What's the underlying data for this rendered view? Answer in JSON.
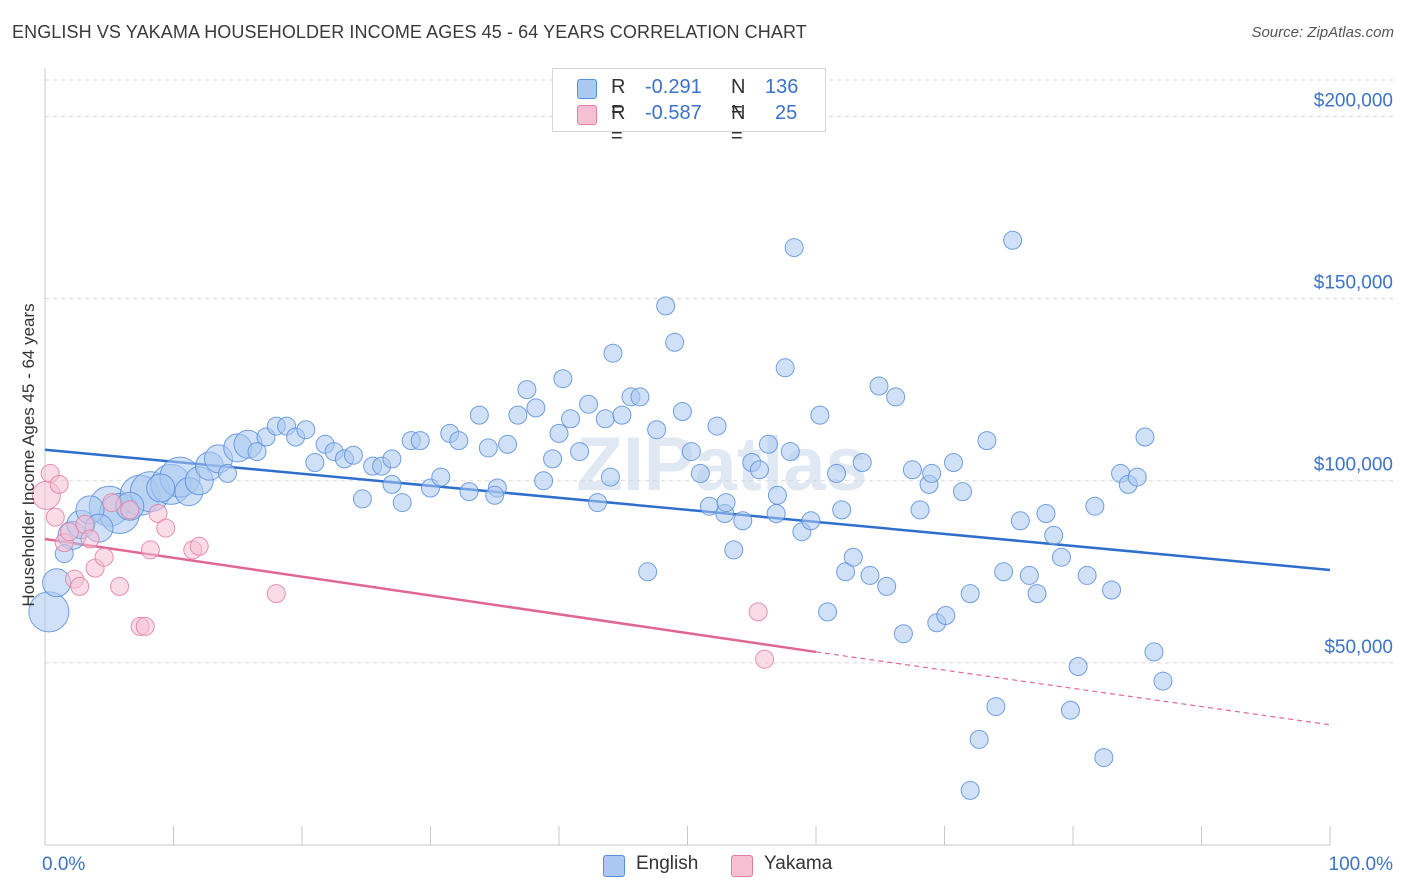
{
  "header": {
    "title": "ENGLISH VS YAKAMA HOUSEHOLDER INCOME AGES 45 - 64 YEARS CORRELATION CHART",
    "source": "Source: ZipAtlas.com"
  },
  "legend": {
    "english": {
      "r_label": "R =",
      "r_value": "-0.291",
      "n_label": "N =",
      "n_value": "136"
    },
    "yakama": {
      "r_label": "R =",
      "r_value": "-0.587",
      "n_label": "N =",
      "n_value": "25"
    }
  },
  "bottom_legend": {
    "english": "English",
    "yakama": "Yakama"
  },
  "watermark": "ZIPatlas",
  "colors": {
    "english": "#5b8fdc",
    "english_fill": "#aac8f0",
    "english_line": "#2f6fcc",
    "yakama": "#e27fa2",
    "yakama_fill": "#f6c0d3",
    "yakama_line": "#e0688f",
    "grid": "#d8d8d8",
    "axis_text": "#3b73c8"
  },
  "chart_data": {
    "type": "scatter",
    "title": "ENGLISH VS YAKAMA HOUSEHOLDER INCOME AGES 45 - 64 YEARS CORRELATION CHART",
    "xlabel": "",
    "ylabel": "Householder Income Ages 45 - 64 years",
    "xlim": [
      0,
      100
    ],
    "ylim": [
      0,
      210000
    ],
    "x_tick_labels": [
      "0.0%",
      "100.0%"
    ],
    "y_ticks": [
      50000,
      100000,
      150000,
      200000
    ],
    "y_tick_labels": [
      "$50,000",
      "$100,000",
      "$150,000",
      "$200,000"
    ],
    "grid": true,
    "legend_position": "top-center",
    "series": [
      {
        "name": "English",
        "r": -0.291,
        "n": 136,
        "trend": {
          "x": [
            0,
            100
          ],
          "y": [
            108500,
            75500
          ]
        },
        "points": [
          [
            0.3,
            64000,
            3
          ],
          [
            0.9,
            72000,
            2
          ],
          [
            1.5,
            80000,
            1
          ],
          [
            2.1,
            85000,
            2
          ],
          [
            2.8,
            88000,
            2
          ],
          [
            3.5,
            92000,
            2
          ],
          [
            4.2,
            87000,
            2
          ],
          [
            5.0,
            93000,
            3
          ],
          [
            5.8,
            91000,
            3
          ],
          [
            6.6,
            93000,
            2
          ],
          [
            7.4,
            96000,
            3
          ],
          [
            8.2,
            97000,
            3
          ],
          [
            9.0,
            98000,
            2
          ],
          [
            9.8,
            99000,
            3
          ],
          [
            10.5,
            101000,
            3
          ],
          [
            11.2,
            97000,
            2
          ],
          [
            12.0,
            100000,
            2
          ],
          [
            12.8,
            104000,
            2
          ],
          [
            13.5,
            106000,
            2
          ],
          [
            14.2,
            102000,
            1
          ],
          [
            15.0,
            109000,
            2
          ],
          [
            15.8,
            110000,
            2
          ],
          [
            16.5,
            108000,
            1
          ],
          [
            17.2,
            112000,
            1
          ],
          [
            18.0,
            115000,
            1
          ],
          [
            18.8,
            115000,
            1
          ],
          [
            19.5,
            112000,
            1
          ],
          [
            20.3,
            114000,
            1
          ],
          [
            21.0,
            105000,
            1
          ],
          [
            21.8,
            110000,
            1
          ],
          [
            22.5,
            108000,
            1
          ],
          [
            23.3,
            106000,
            1
          ],
          [
            24.0,
            107000,
            1
          ],
          [
            24.7,
            95000,
            1
          ],
          [
            25.5,
            104000,
            1
          ],
          [
            26.2,
            104000,
            1
          ],
          [
            27.0,
            106000,
            1
          ],
          [
            27.8,
            94000,
            1
          ],
          [
            28.5,
            111000,
            1
          ],
          [
            29.2,
            111000,
            1
          ],
          [
            30.0,
            98000,
            1
          ],
          [
            30.8,
            101000,
            1
          ],
          [
            31.5,
            113000,
            1
          ],
          [
            32.2,
            111000,
            1
          ],
          [
            33.0,
            97000,
            1
          ],
          [
            33.8,
            118000,
            1
          ],
          [
            34.5,
            109000,
            1
          ],
          [
            35.2,
            98000,
            1
          ],
          [
            36.0,
            110000,
            1
          ],
          [
            36.8,
            118000,
            1
          ],
          [
            37.5,
            125000,
            1
          ],
          [
            38.2,
            120000,
            1
          ],
          [
            38.8,
            100000,
            1
          ],
          [
            39.5,
            106000,
            1
          ],
          [
            40.3,
            128000,
            1
          ],
          [
            40.9,
            117000,
            1
          ],
          [
            41.6,
            108000,
            1
          ],
          [
            42.3,
            121000,
            1
          ],
          [
            43.0,
            94000,
            1
          ],
          [
            43.6,
            117000,
            1
          ],
          [
            44.2,
            135000,
            1
          ],
          [
            44.9,
            118000,
            1
          ],
          [
            45.6,
            123000,
            1
          ],
          [
            46.3,
            123000,
            1
          ],
          [
            46.9,
            75000,
            1
          ],
          [
            47.6,
            114000,
            1
          ],
          [
            48.3,
            148000,
            1
          ],
          [
            49.0,
            138000,
            1
          ],
          [
            49.6,
            119000,
            1
          ],
          [
            50.3,
            108000,
            1
          ],
          [
            51.0,
            102000,
            1
          ],
          [
            51.7,
            93000,
            1
          ],
          [
            52.3,
            115000,
            1
          ],
          [
            52.9,
            91000,
            1
          ],
          [
            53.6,
            81000,
            1
          ],
          [
            54.3,
            89000,
            1
          ],
          [
            55.0,
            105000,
            1
          ],
          [
            55.6,
            103000,
            1
          ],
          [
            56.3,
            110000,
            1
          ],
          [
            56.9,
            91000,
            1
          ],
          [
            57.6,
            131000,
            1
          ],
          [
            58.3,
            164000,
            1
          ],
          [
            58.9,
            86000,
            1
          ],
          [
            59.6,
            89000,
            1
          ],
          [
            60.3,
            118000,
            1
          ],
          [
            60.9,
            64000,
            1
          ],
          [
            61.6,
            102000,
            1
          ],
          [
            62.3,
            75000,
            1
          ],
          [
            62.9,
            79000,
            1
          ],
          [
            63.6,
            105000,
            1
          ],
          [
            64.2,
            74000,
            1
          ],
          [
            64.9,
            126000,
            1
          ],
          [
            65.5,
            71000,
            1
          ],
          [
            66.2,
            123000,
            1
          ],
          [
            66.8,
            58000,
            1
          ],
          [
            67.5,
            103000,
            1
          ],
          [
            68.1,
            92000,
            1
          ],
          [
            68.8,
            99000,
            1
          ],
          [
            69.4,
            61000,
            1
          ],
          [
            70.1,
            63000,
            1
          ],
          [
            70.7,
            105000,
            1
          ],
          [
            71.4,
            97000,
            1
          ],
          [
            72.0,
            69000,
            1
          ],
          [
            72.7,
            29000,
            1
          ],
          [
            73.3,
            111000,
            1
          ],
          [
            74.0,
            38000,
            1
          ],
          [
            74.6,
            75000,
            1
          ],
          [
            75.3,
            166000,
            1
          ],
          [
            75.9,
            89000,
            1
          ],
          [
            76.6,
            74000,
            1
          ],
          [
            77.2,
            69000,
            1
          ],
          [
            77.9,
            91000,
            1
          ],
          [
            78.5,
            85000,
            1
          ],
          [
            79.1,
            79000,
            1
          ],
          [
            79.8,
            37000,
            1
          ],
          [
            80.4,
            49000,
            1
          ],
          [
            81.1,
            74000,
            1
          ],
          [
            81.7,
            93000,
            1
          ],
          [
            82.4,
            24000,
            1
          ],
          [
            83.0,
            70000,
            1
          ],
          [
            83.7,
            102000,
            1
          ],
          [
            84.3,
            99000,
            1
          ],
          [
            85.0,
            101000,
            1
          ],
          [
            85.6,
            112000,
            1
          ],
          [
            86.3,
            53000,
            1
          ],
          [
            87.0,
            45000,
            1
          ],
          [
            58.0,
            108000,
            1
          ],
          [
            53.0,
            94000,
            1
          ],
          [
            62.0,
            92000,
            1
          ],
          [
            69.0,
            102000,
            1
          ],
          [
            72.0,
            15000,
            1
          ],
          [
            44.0,
            101000,
            1
          ],
          [
            40.0,
            113000,
            1
          ],
          [
            35.0,
            96000,
            1
          ],
          [
            27.0,
            99000,
            1
          ],
          [
            57.0,
            96000,
            1
          ]
        ]
      },
      {
        "name": "Yakama",
        "r": -0.587,
        "n": 25,
        "trend": {
          "x": [
            0,
            60,
            100
          ],
          "y": [
            84000,
            53000,
            33000
          ]
        },
        "points": [
          [
            0.1,
            96000,
            2
          ],
          [
            0.4,
            102000,
            1
          ],
          [
            0.8,
            90000,
            1
          ],
          [
            1.1,
            99000,
            1
          ],
          [
            1.5,
            83000,
            1
          ],
          [
            1.9,
            86000,
            1
          ],
          [
            2.3,
            73000,
            1
          ],
          [
            2.7,
            71000,
            1
          ],
          [
            3.1,
            88000,
            1
          ],
          [
            3.5,
            84000,
            1
          ],
          [
            3.9,
            76000,
            1
          ],
          [
            4.6,
            79000,
            1
          ],
          [
            5.2,
            94000,
            1
          ],
          [
            5.8,
            71000,
            1
          ],
          [
            6.6,
            92000,
            1
          ],
          [
            7.4,
            60000,
            1
          ],
          [
            7.8,
            60000,
            1
          ],
          [
            8.2,
            81000,
            1
          ],
          [
            8.8,
            91000,
            1
          ],
          [
            9.4,
            87000,
            1
          ],
          [
            11.5,
            81000,
            1
          ],
          [
            12.0,
            82000,
            1
          ],
          [
            18.0,
            69000,
            1
          ],
          [
            55.5,
            64000,
            1
          ],
          [
            56.0,
            51000,
            1
          ]
        ]
      }
    ]
  }
}
